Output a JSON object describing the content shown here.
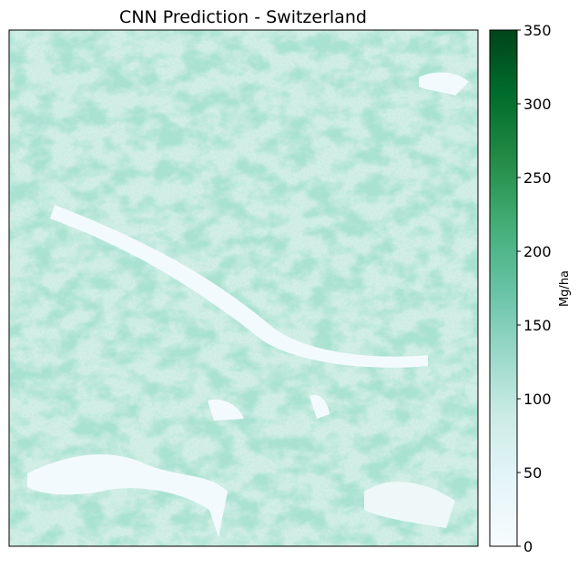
{
  "chart_data": {
    "type": "heatmap",
    "title": "CNN Prediction - Switzerland",
    "colorbar_label": "Mg/ha",
    "ylim": [
      0,
      350
    ],
    "yticks": [
      0,
      50,
      100,
      150,
      200,
      250,
      300,
      350
    ],
    "colormap": [
      "#f7fcfd",
      "#e5f5f9",
      "#ccece6",
      "#99d8c9",
      "#66c2a4",
      "#41ae76",
      "#238b45",
      "#006d2c",
      "#00441b"
    ]
  }
}
